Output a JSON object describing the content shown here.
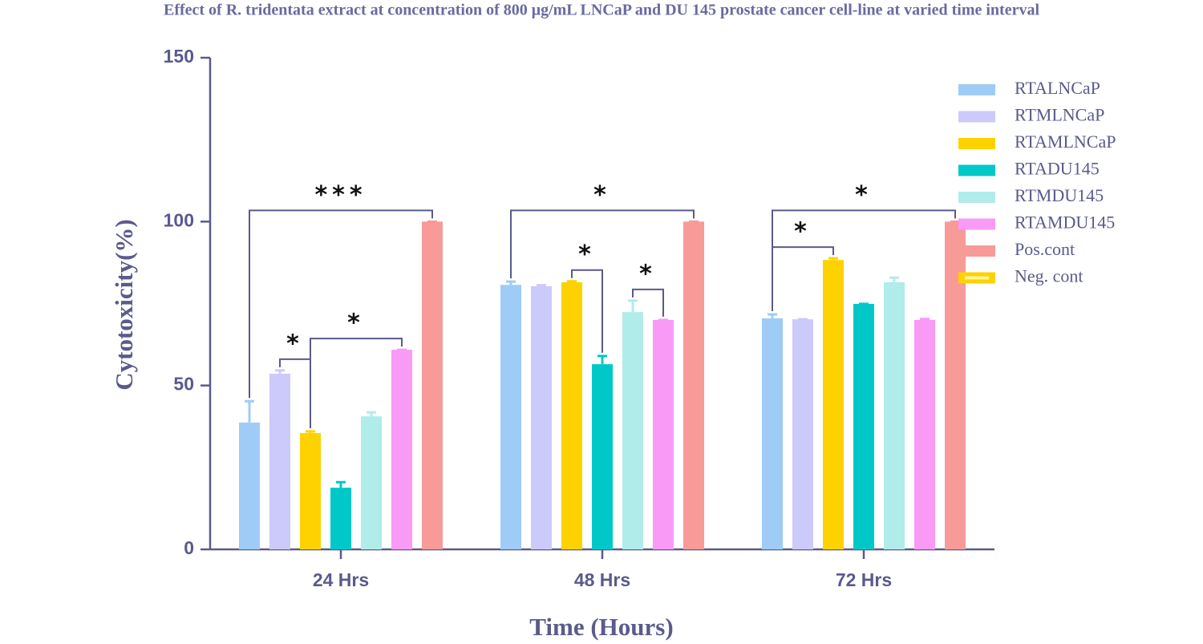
{
  "chart_data": {
    "type": "bar",
    "title": "Effect of R. tridentata extract at concentration of  800  μg/mL LNCaP and DU 145 prostate cancer cell-line at varied time interval",
    "x_label": "Time (Hours)",
    "y_label": "Cytotoxicity(%)",
    "categories": [
      "24 Hrs",
      "48 Hrs",
      "72 Hrs"
    ],
    "ylim": [
      0,
      150
    ],
    "yticks": [
      0,
      50,
      100,
      150
    ],
    "series": [
      {
        "name": "RTALNCaP",
        "color": "#9fcbf7",
        "values": [
          38.7,
          80.7,
          70.5
        ],
        "errors": [
          6.5,
          1,
          1.2
        ]
      },
      {
        "name": "RTMLNCaP",
        "color": "#cccafa",
        "values": [
          53.6,
          80.3,
          70.2
        ],
        "errors": [
          1,
          0.3,
          0
        ]
      },
      {
        "name": "RTAMLNCaP",
        "color": "#fdd200",
        "values": [
          35.5,
          81.5,
          88.3
        ],
        "errors": [
          0.5,
          0.3,
          0.5
        ]
      },
      {
        "name": "RTADU145",
        "color": "#00c8c8",
        "values": [
          18.8,
          56.5,
          74.9
        ],
        "errors": [
          1.7,
          2.5,
          0
        ]
      },
      {
        "name": "RTMDU145",
        "color": "#b0ecea",
        "values": [
          40.6,
          72.4,
          81.5
        ],
        "errors": [
          1.2,
          3.5,
          1.4
        ]
      },
      {
        "name": "RTAMDU145",
        "color": "#f99af7",
        "values": [
          60.9,
          70,
          70
        ],
        "errors": [
          0,
          0,
          0.3
        ]
      },
      {
        "name": "Pos.cont",
        "color": "#f79a98",
        "values": [
          100,
          100,
          100
        ],
        "errors": [
          0,
          0,
          0
        ]
      },
      {
        "name": "Neg. cont",
        "color": "#fdd200",
        "values": [
          null,
          null,
          null
        ]
      }
    ],
    "annotations": [
      {
        "label": "***",
        "category": 0,
        "from": 0,
        "to": 6
      },
      {
        "label": "*",
        "category": 0,
        "from": 1,
        "to": 2
      },
      {
        "label": "*",
        "category": 0,
        "from": 2,
        "to": 5
      },
      {
        "label": "*",
        "category": 1,
        "from": 0,
        "to": 6
      },
      {
        "label": "*",
        "category": 1,
        "from": 2,
        "to": 3
      },
      {
        "label": "*",
        "category": 1,
        "from": 4,
        "to": 5
      },
      {
        "label": "*",
        "category": 2,
        "from": 0,
        "to": 6
      },
      {
        "label": "*",
        "category": 2,
        "from": 0,
        "to": 2
      }
    ]
  }
}
